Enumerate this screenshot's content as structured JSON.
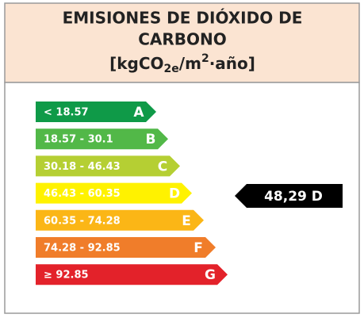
{
  "header": {
    "title_lines": [
      "EMISIONES DE DIÓXIDO DE",
      "CARBONO"
    ],
    "unit": [
      "[kgCO",
      "2e",
      "/m",
      "2",
      "·año]"
    ]
  },
  "bands": [
    {
      "range": "< 18.57",
      "letter": "A",
      "color": "#0f9a48"
    },
    {
      "range": "18.57 - 30.1",
      "letter": "B",
      "color": "#52b848"
    },
    {
      "range": "30.18 - 46.43",
      "letter": "C",
      "color": "#b5cf33"
    },
    {
      "range": "46.43 - 60.35",
      "letter": "D",
      "color": "#fff200"
    },
    {
      "range": "60.35 - 74.28",
      "letter": "E",
      "color": "#fbb616"
    },
    {
      "range": "74.28 - 92.85",
      "letter": "F",
      "color": "#f07d2a"
    },
    {
      "range": "≥ 92.85",
      "letter": "G",
      "color": "#e3222a"
    }
  ],
  "rating": {
    "label": "48,29 D"
  }
}
